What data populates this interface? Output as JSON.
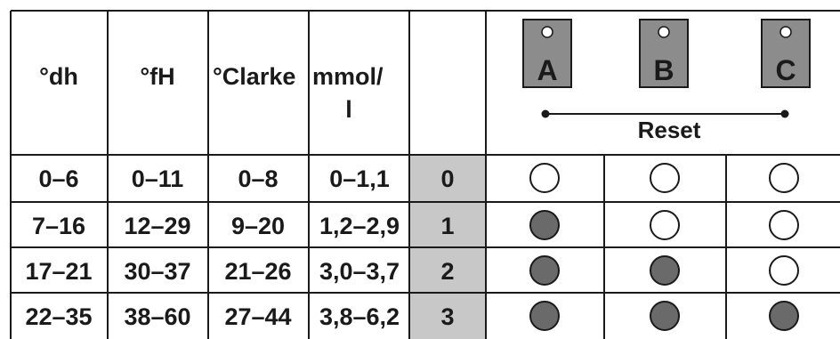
{
  "headers": {
    "dh": "°dh",
    "fh": "°fH",
    "clarke": "°Clarke",
    "mmol_line1": "mmol/",
    "mmol_line2": "l"
  },
  "buttons": [
    {
      "label": "A"
    },
    {
      "label": "B"
    },
    {
      "label": "C"
    }
  ],
  "reset_label": "Reset",
  "colors": {
    "level_cell": "#c8c8c8",
    "button_fill": "#8c8c8c",
    "led_on": "#6a6a6a",
    "led_off": "#ffffff"
  },
  "rows": [
    {
      "dh": "0–6",
      "fh": "0–11",
      "clarke": "0–8",
      "mmol": "0–1,1",
      "level": "0",
      "leds": [
        false,
        false,
        false
      ]
    },
    {
      "dh": "7–16",
      "fh": "12–29",
      "clarke": "9–20",
      "mmol": "1,2–2,9",
      "level": "1",
      "leds": [
        true,
        false,
        false
      ]
    },
    {
      "dh": "17–21",
      "fh": "30–37",
      "clarke": "21–26",
      "mmol": "3,0–3,7",
      "level": "2",
      "leds": [
        true,
        true,
        false
      ]
    },
    {
      "dh": "22–35",
      "fh": "38–60",
      "clarke": "27–44",
      "mmol": "3,8–6,2",
      "level": "3",
      "leds": [
        true,
        true,
        true
      ]
    }
  ]
}
